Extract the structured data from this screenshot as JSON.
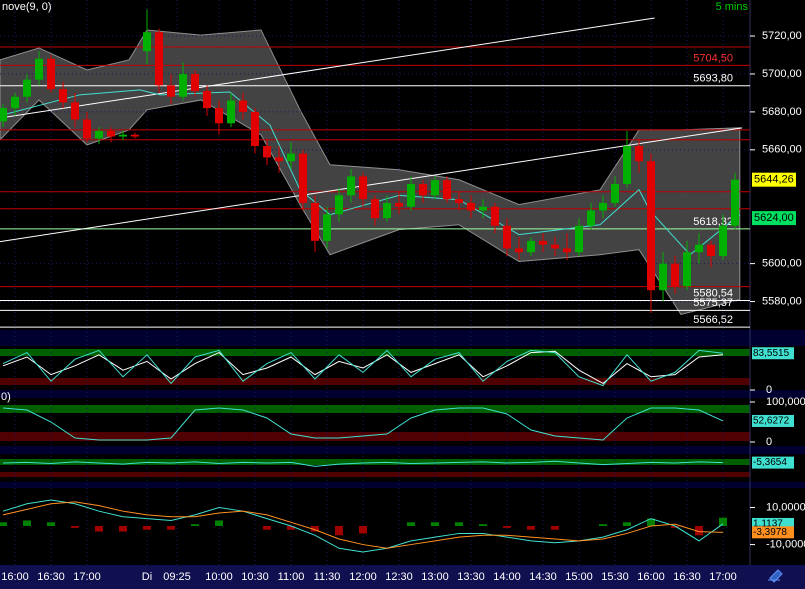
{
  "chart_data": {
    "type": "candlestick",
    "title": "nove(9, 0)",
    "interval": "5 mins",
    "up_color": "#00b000",
    "down_color": "#e00000",
    "open": [
      5675,
      5682,
      5688,
      5697,
      5708,
      5692,
      5685,
      5676,
      5666,
      5670,
      5667,
      5668,
      5712,
      5722,
      5694,
      5688,
      5700,
      5691,
      5682,
      5674,
      5686,
      5680,
      5662,
      5656,
      5654,
      5658,
      5632,
      5612,
      5626,
      5636,
      5646,
      5634,
      5624,
      5632,
      5630,
      5642,
      5636,
      5644,
      5634,
      5632,
      5628,
      5630,
      5620,
      5608,
      5606,
      5612,
      5610,
      5608,
      5606,
      5620,
      5628,
      5632,
      5642,
      5662,
      5654,
      5586,
      5600,
      5588,
      5606,
      5610,
      5604,
      5620
    ],
    "high": [
      5684,
      5690,
      5700,
      5712,
      5710,
      5696,
      5690,
      5680,
      5672,
      5672,
      5670,
      5669,
      5734,
      5724,
      5700,
      5706,
      5702,
      5694,
      5686,
      5690,
      5690,
      5682,
      5666,
      5662,
      5664,
      5660,
      5636,
      5630,
      5640,
      5650,
      5648,
      5636,
      5636,
      5638,
      5646,
      5644,
      5646,
      5646,
      5638,
      5636,
      5634,
      5632,
      5624,
      5614,
      5614,
      5616,
      5614,
      5616,
      5624,
      5632,
      5636,
      5646,
      5670,
      5666,
      5658,
      5606,
      5604,
      5612,
      5616,
      5612,
      5626,
      5648
    ],
    "low": [
      5672,
      5678,
      5685,
      5694,
      5690,
      5682,
      5672,
      5664,
      5663,
      5664,
      5665,
      5666,
      5705,
      5690,
      5684,
      5686,
      5688,
      5678,
      5668,
      5672,
      5676,
      5658,
      5652,
      5648,
      5650,
      5628,
      5606,
      5608,
      5622,
      5632,
      5630,
      5620,
      5622,
      5626,
      5628,
      5632,
      5634,
      5632,
      5628,
      5624,
      5624,
      5616,
      5604,
      5602,
      5604,
      5606,
      5604,
      5602,
      5604,
      5618,
      5624,
      5630,
      5640,
      5648,
      5574,
      5580,
      5584,
      5586,
      5600,
      5598,
      5602,
      5618
    ],
    "close": [
      5682,
      5688,
      5697,
      5708,
      5692,
      5685,
      5676,
      5666,
      5670,
      5667,
      5668,
      5667,
      5722,
      5694,
      5688,
      5700,
      5691,
      5682,
      5674,
      5686,
      5680,
      5662,
      5656,
      5654,
      5658,
      5632,
      5612,
      5626,
      5636,
      5646,
      5634,
      5624,
      5632,
      5630,
      5642,
      5636,
      5644,
      5634,
      5632,
      5628,
      5630,
      5620,
      5608,
      5606,
      5612,
      5610,
      5608,
      5606,
      5620,
      5628,
      5632,
      5642,
      5662,
      5654,
      5586,
      5600,
      5588,
      5606,
      5610,
      5604,
      5620,
      5644.26
    ],
    "ylim": [
      5565,
      5739
    ],
    "yticks": [
      {
        "value": 5720,
        "label": "5720,00"
      },
      {
        "value": 5700,
        "label": "5700,00"
      },
      {
        "value": 5680,
        "label": "5680,00"
      },
      {
        "value": 5660,
        "label": "5660,00"
      },
      {
        "value": 5600,
        "label": "5600,00"
      },
      {
        "value": 5580,
        "label": "5580,00"
      }
    ],
    "xticks": [
      {
        "value": 1,
        "label": "16:00"
      },
      {
        "value": 4,
        "label": "16:30"
      },
      {
        "value": 7,
        "label": "17:00"
      },
      {
        "value": 12,
        "label": "Di"
      },
      {
        "value": 14.5,
        "label": "09:25"
      },
      {
        "value": 18,
        "label": "10:00"
      },
      {
        "value": 21,
        "label": "10:30"
      },
      {
        "value": 24,
        "label": "11:00"
      },
      {
        "value": 27,
        "label": "11:30"
      },
      {
        "value": 30,
        "label": "12:00"
      },
      {
        "value": 33,
        "label": "12:30"
      },
      {
        "value": 36,
        "label": "13:00"
      },
      {
        "value": 39,
        "label": "13:30"
      },
      {
        "value": 42,
        "label": "14:00"
      },
      {
        "value": 45,
        "label": "14:30"
      },
      {
        "value": 48,
        "label": "15:00"
      },
      {
        "value": 51,
        "label": "15:30"
      },
      {
        "value": 54,
        "label": "16:00"
      },
      {
        "value": 57,
        "label": "16:30"
      },
      {
        "value": 60,
        "label": "17:00"
      }
    ],
    "quotes": [
      {
        "value": 5644.26,
        "label": "5644,26",
        "color": "#ffff00"
      },
      {
        "value": 5624.0,
        "label": "5624,00",
        "color": "#00e060"
      }
    ],
    "levels": [
      {
        "value": 5714.2,
        "color": "#c00000"
      },
      {
        "value": 5704.5,
        "color": "#c00000",
        "label": "5704,50"
      },
      {
        "value": 5693.8,
        "color": "#ffffff",
        "label": "5693,80"
      },
      {
        "value": 5670.5,
        "color": "#c00000"
      },
      {
        "value": 5665.3,
        "color": "#c00000"
      },
      {
        "value": 5637.9,
        "color": "#c00000"
      },
      {
        "value": 5628.9,
        "color": "#c00000"
      },
      {
        "value": 5618.32,
        "color": "#a0ffa0",
        "label": "5618,32"
      },
      {
        "value": 5587.9,
        "color": "#c00000"
      },
      {
        "value": 5580.54,
        "color": "#ffffff",
        "label": "5580,54"
      },
      {
        "value": 5575.37,
        "color": "#ffffff",
        "label": "5575,37"
      },
      {
        "value": 5566.52,
        "color": "#ffffff",
        "label": "5566,52"
      }
    ],
    "trendlines": [
      {
        "x": [
          -0.25,
          54.3
        ],
        "y": [
          5676.8,
          5729.5
        ],
        "color": "#ffffff"
      },
      {
        "x": [
          -0.25,
          61.6
        ],
        "y": [
          5611.6,
          5671.6
        ],
        "color": "#ffffff"
      }
    ],
    "band": {
      "x": [
        -0.25,
        3,
        7,
        10.5,
        12,
        16.5,
        21.5,
        24.75,
        27.25,
        33,
        38,
        43,
        49.75,
        53,
        56.5,
        61.4
      ],
      "upper": [
        5707.4,
        5713.7,
        5702.1,
        5707.4,
        5723.2,
        5720.5,
        5723.2,
        5681.1,
        5652.1,
        5649.5,
        5644.2,
        5631.1,
        5638.9,
        5670.5,
        5670.5,
        5671.6
      ],
      "lower": [
        5665.3,
        5686.3,
        5662.6,
        5670.5,
        5681.1,
        5686.3,
        5667.9,
        5631.1,
        5604.7,
        5617.9,
        5620.5,
        5601.1,
        5604.7,
        5607.4,
        5573.2,
        5581.1
      ],
      "color": "#5a5a5a"
    },
    "average": {
      "x": [
        -0.25,
        6.4,
        11.4,
        13.1,
        18.9,
        22.25,
        24.75,
        27.25,
        33,
        38,
        43,
        49.75,
        53,
        53.9,
        57.25,
        61.4
      ],
      "values": [
        5678,
        5689,
        5691.6,
        5689,
        5690.5,
        5673,
        5639,
        5625.8,
        5636,
        5633.7,
        5615.3,
        5620.5,
        5639,
        5628,
        5604.7,
        5625.8
      ],
      "color": "#40e0d0"
    },
    "panels": [
      {
        "type": "line",
        "ylim": [
          0,
          100
        ],
        "yticks": [
          0
        ],
        "x": [
          0,
          2,
          4,
          6,
          8,
          10,
          12,
          14,
          16,
          18,
          20,
          22,
          24,
          26,
          28,
          30,
          32,
          34,
          36,
          38,
          40,
          42,
          44,
          46,
          48,
          50,
          52,
          54,
          56,
          58,
          60
        ],
        "series": [
          {
            "color": "#ffffff",
            "values": [
              55,
              75,
              35,
              55,
              80,
              45,
              65,
              25,
              60,
              85,
              35,
              50,
              75,
              35,
              65,
              50,
              80,
              40,
              60,
              80,
              30,
              55,
              85,
              88,
              45,
              15,
              60,
              30,
              35,
              75,
              80
            ]
          },
          {
            "color": "#40e0d0",
            "values": [
              60,
              85,
              20,
              70,
              90,
              30,
              80,
              15,
              75,
              90,
              20,
              60,
              85,
              25,
              80,
              40,
              90,
              30,
              70,
              85,
              20,
              65,
              90,
              85,
              30,
              10,
              80,
              20,
              40,
              90,
              83.5515
            ]
          }
        ],
        "current": [
          {
            "value": 83.5515,
            "label": "83,5515",
            "color": "#40e0d0"
          }
        ]
      },
      {
        "type": "line",
        "caption": "0)",
        "ylim": [
          -10,
          110
        ],
        "yticks": [
          {
            "value": 100,
            "label": "100,0000"
          },
          0
        ],
        "x": [
          0,
          2,
          4,
          6,
          8,
          10,
          12,
          14,
          16,
          18,
          20,
          22,
          24,
          26,
          28,
          30,
          32,
          34,
          36,
          38,
          40,
          42,
          44,
          46,
          48,
          50,
          52,
          54,
          56,
          58,
          60
        ],
        "series": [
          {
            "color": "#40e0d0",
            "values": [
              85,
              80,
              50,
              10,
              5,
              5,
              5,
              10,
              80,
              85,
              80,
              60,
              20,
              10,
              10,
              15,
              20,
              60,
              80,
              85,
              85,
              70,
              30,
              15,
              10,
              5,
              60,
              85,
              85,
              80,
              52.6272
            ]
          }
        ],
        "current": [
          {
            "value": 52.6272,
            "label": "52,6272",
            "color": "#40e0d0"
          }
        ]
      },
      {
        "type": "line",
        "ylim": [
          -40,
          10
        ],
        "yticks": [],
        "x": [
          0,
          2,
          4,
          6,
          8,
          10,
          12,
          14,
          16,
          18,
          20,
          22,
          24,
          26,
          28,
          30,
          32,
          34,
          36,
          38,
          40,
          42,
          44,
          46,
          48,
          50,
          52,
          54,
          56,
          58,
          60
        ],
        "series": [
          {
            "color": "#40e0d0",
            "values": [
              -6,
              -5,
              -7,
              -4,
              -6,
              -8,
              -5,
              -6,
              -4,
              -7,
              -5,
              -6,
              -5,
              -12,
              -8,
              -6,
              -5,
              -7,
              -6,
              -5,
              -4,
              -6,
              -5,
              -3,
              -6,
              -9,
              -7,
              -5,
              -6,
              -4,
              -5.3654
            ]
          }
        ],
        "current": [
          {
            "value": -5.3654,
            "label": "-5,3654",
            "color": "#40e0d0"
          }
        ]
      },
      {
        "type": "line",
        "ylim": [
          -19.4,
          20.5
        ],
        "yticks": [
          {
            "value": 10,
            "label": "10,0000"
          },
          {
            "value": -10,
            "label": "-10,0000"
          }
        ],
        "x": [
          0,
          2,
          4,
          6,
          8,
          10,
          12,
          14,
          16,
          18,
          20,
          22,
          24,
          26,
          28,
          30,
          32,
          34,
          36,
          38,
          40,
          42,
          44,
          46,
          48,
          50,
          52,
          54,
          56,
          58,
          60
        ],
        "histogram": {
          "up_color": "#008000",
          "down_color": "#a00000",
          "values": [
            2,
            3,
            2,
            -1,
            -3,
            -3,
            -2,
            -2,
            1,
            3,
            0,
            -2,
            -2,
            -3,
            -5,
            -4,
            0,
            2,
            2,
            2,
            1,
            -1,
            -2,
            -2,
            0,
            1,
            2,
            4,
            -1,
            -5,
            4.5
          ]
        },
        "series": [
          {
            "color": "#40e0d0",
            "values": [
              8,
              12,
              14,
              12,
              8,
              5,
              4,
              3,
              6,
              10,
              8,
              4,
              0,
              -5,
              -12,
              -14,
              -12,
              -8,
              -6,
              -4,
              -4,
              -6,
              -8,
              -9,
              -8,
              -6,
              -2,
              4,
              0,
              -8,
              1.1137
            ]
          },
          {
            "color": "#ff9020",
            "values": [
              6,
              9,
              12,
              13,
              11,
              8,
              6,
              5,
              5,
              7,
              8,
              6,
              2,
              -2,
              -7,
              -10,
              -12,
              -10,
              -8,
              -6,
              -5,
              -5,
              -6,
              -7,
              -8,
              -7,
              -4,
              0,
              1,
              -3,
              -3.3978
            ]
          }
        ],
        "current": [
          {
            "value": 1.1137,
            "label": "1,1137",
            "color": "#40e0d0"
          },
          {
            "value": -3.3978,
            "label": "-3,3978",
            "color": "#ff9020"
          }
        ]
      }
    ]
  }
}
